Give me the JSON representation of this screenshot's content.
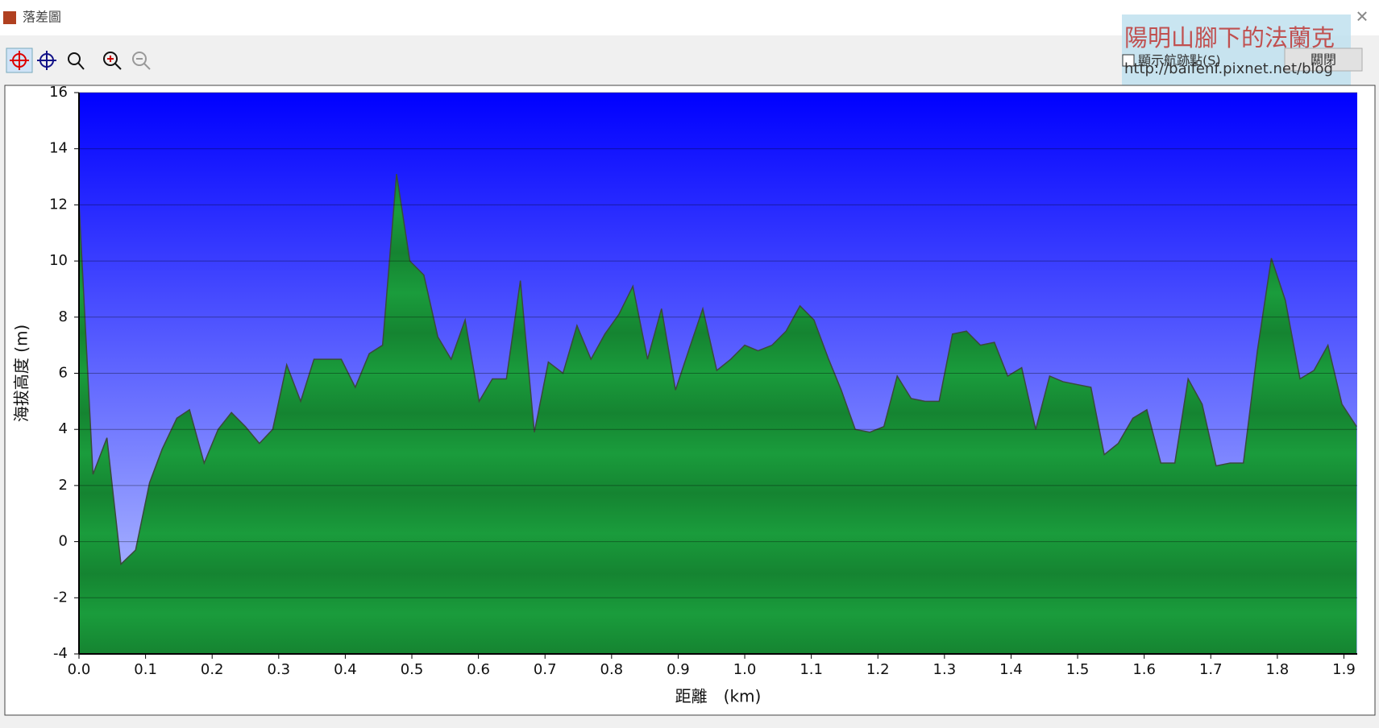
{
  "window": {
    "title": "落差圖",
    "checkbox": "顯示航跡點(S)",
    "button": "關閉"
  },
  "watermark": {
    "name": "陽明山腳下的法蘭克",
    "url": "http://baifenf.pixnet.net/blog"
  },
  "chart_data": {
    "type": "area",
    "xlabel": "距離　(km)",
    "ylabel": "海拔高度 (m)",
    "color": "#1b9a3a",
    "grid": true,
    "xlim": [
      0,
      1.92
    ],
    "ylim": [
      -4,
      16
    ],
    "xticks": [
      {
        "value": 0,
        "label": "0.0"
      },
      0.1,
      0.2,
      0.3,
      0.4,
      0.5,
      0.6,
      0.7,
      0.8,
      0.9,
      {
        "value": 1,
        "label": "1.0"
      },
      1.1,
      1.2,
      1.3,
      1.4,
      1.5,
      1.6,
      1.7,
      1.8,
      1.9
    ],
    "yticks": [
      -4,
      -2,
      0,
      2,
      4,
      6,
      8,
      10,
      12,
      14,
      16
    ],
    "x": [
      0,
      0.021,
      0.042,
      0.063,
      0.085,
      0.106,
      0.125,
      0.147,
      0.166,
      0.188,
      0.209,
      0.229,
      0.25,
      0.271,
      0.291,
      0.312,
      0.333,
      0.353,
      0.374,
      0.394,
      0.415,
      0.436,
      0.456,
      0.477,
      0.497,
      0.518,
      0.539,
      0.559,
      0.58,
      0.601,
      0.621,
      0.642,
      0.663,
      0.684,
      0.705,
      0.727,
      0.748,
      0.769,
      0.79,
      0.811,
      0.832,
      0.854,
      0.875,
      0.896,
      0.917,
      0.937,
      0.958,
      0.979,
      1.0,
      1.02,
      1.041,
      1.062,
      1.083,
      1.104,
      1.126,
      1.145,
      1.166,
      1.188,
      1.209,
      1.229,
      1.25,
      1.271,
      1.292,
      1.312,
      1.333,
      1.354,
      1.375,
      1.395,
      1.416,
      1.437,
      1.458,
      1.478,
      1.499,
      1.52,
      1.54,
      1.561,
      1.583,
      1.604,
      1.625,
      1.646,
      1.666,
      1.687,
      1.708,
      1.729,
      1.749,
      1.77,
      1.791,
      1.812,
      1.834,
      1.855,
      1.876,
      1.897,
      1.919
    ],
    "values": [
      12.1,
      2.4,
      3.7,
      -0.8,
      -0.3,
      2.1,
      3.3,
      4.4,
      4.7,
      2.8,
      4.0,
      4.6,
      4.1,
      3.5,
      4.0,
      6.3,
      5.0,
      6.5,
      6.5,
      6.5,
      5.5,
      6.7,
      7.0,
      13.1,
      10.0,
      9.5,
      7.3,
      6.5,
      7.9,
      5.0,
      5.8,
      5.8,
      9.3,
      3.9,
      6.4,
      6.0,
      7.7,
      6.5,
      7.4,
      8.1,
      9.1,
      6.5,
      8.3,
      5.4,
      6.9,
      8.3,
      6.1,
      6.5,
      7.0,
      6.8,
      7.0,
      7.5,
      8.4,
      7.9,
      6.5,
      5.4,
      4.0,
      3.9,
      4.1,
      5.9,
      5.1,
      5.0,
      5.0,
      7.4,
      7.5,
      7.0,
      7.1,
      5.9,
      6.2,
      4.0,
      5.9,
      5.7,
      5.6,
      5.5,
      3.1,
      3.5,
      4.4,
      4.7,
      2.8,
      2.8,
      5.8,
      4.9,
      2.7,
      2.8,
      2.8,
      6.8,
      10.1,
      8.6,
      5.8,
      6.1,
      7.0,
      4.9,
      4.1
    ]
  }
}
